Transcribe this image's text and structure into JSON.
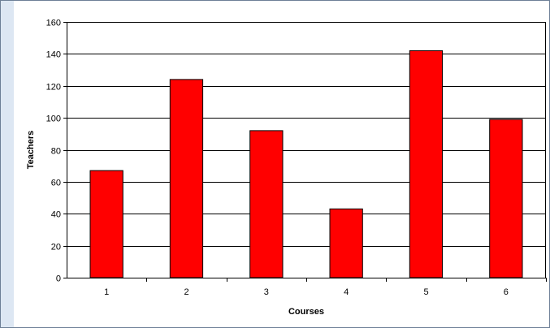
{
  "chart_data": {
    "type": "bar",
    "title": "",
    "xlabel": "Courses",
    "ylabel": "Teachers",
    "categories": [
      "1",
      "2",
      "3",
      "4",
      "5",
      "6"
    ],
    "values": [
      67,
      124,
      92,
      43,
      142,
      99
    ],
    "ylim": [
      0,
      160
    ],
    "yticks": [
      0,
      20,
      40,
      60,
      80,
      100,
      120,
      140,
      160
    ],
    "grid": true,
    "legend": "none",
    "colors": {
      "bar": "#ff0000",
      "bar_border": "#000000",
      "grid": "#000000"
    }
  }
}
